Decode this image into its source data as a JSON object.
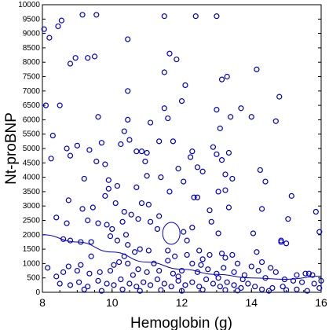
{
  "chart_data": {
    "type": "scatter",
    "title": "",
    "xlabel": "Hemoglobin (g)",
    "ylabel": "Nt-proBNP",
    "xlim": [
      8,
      16
    ],
    "ylim": [
      0,
      10000
    ],
    "xticks": [
      8,
      10,
      12,
      14,
      16
    ],
    "yticks": [
      0,
      500,
      1000,
      1500,
      2000,
      2500,
      3000,
      3500,
      4000,
      4500,
      5000,
      5500,
      6000,
      6500,
      7000,
      7500,
      8000,
      8500,
      9000,
      9500,
      10000
    ],
    "grid": false,
    "marker_color": "#0000cc",
    "fit_color": "#0000cc",
    "points": [
      [
        8.05,
        9150
      ],
      [
        8.2,
        8850
      ],
      [
        8.45,
        9250
      ],
      [
        8.55,
        9450
      ],
      [
        9.15,
        9650
      ],
      [
        9.55,
        9650
      ],
      [
        11.5,
        9600
      ],
      [
        12.4,
        9600
      ],
      [
        13.0,
        9600
      ],
      [
        8.8,
        7950
      ],
      [
        8.95,
        8150
      ],
      [
        9.3,
        8150
      ],
      [
        9.5,
        8200
      ],
      [
        10.45,
        8800
      ],
      [
        11.65,
        8300
      ],
      [
        11.85,
        8100
      ],
      [
        12.1,
        7200
      ],
      [
        13.15,
        7400
      ],
      [
        13.3,
        7500
      ],
      [
        14.15,
        7750
      ],
      [
        11.5,
        7650
      ],
      [
        8.1,
        6500
      ],
      [
        8.5,
        6500
      ],
      [
        8.3,
        5450
      ],
      [
        9.6,
        6100
      ],
      [
        10.45,
        7000
      ],
      [
        10.45,
        6000
      ],
      [
        10.35,
        5600
      ],
      [
        11.1,
        5900
      ],
      [
        11.5,
        6400
      ],
      [
        11.6,
        6050
      ],
      [
        12.0,
        6650
      ],
      [
        13.0,
        6350
      ],
      [
        13.1,
        5700
      ],
      [
        13.4,
        6100
      ],
      [
        13.7,
        6400
      ],
      [
        14.0,
        6100
      ],
      [
        14.8,
        6800
      ],
      [
        14.7,
        5950
      ],
      [
        11.75,
        5250
      ],
      [
        9.0,
        5100
      ],
      [
        8.7,
        5000
      ],
      [
        9.35,
        4950
      ],
      [
        9.7,
        5200
      ],
      [
        9.8,
        4450
      ],
      [
        10.25,
        5150
      ],
      [
        10.5,
        5300
      ],
      [
        10.7,
        4900
      ],
      [
        10.85,
        4900
      ],
      [
        11.0,
        4850
      ],
      [
        11.35,
        5250
      ],
      [
        12.3,
        4900
      ],
      [
        12.25,
        4700
      ],
      [
        12.9,
        5050
      ],
      [
        13.0,
        4800
      ],
      [
        13.15,
        4600
      ],
      [
        13.35,
        4850
      ],
      [
        14.25,
        4250
      ],
      [
        8.25,
        4650
      ],
      [
        8.8,
        4750
      ],
      [
        9.55,
        4550
      ],
      [
        10.95,
        4550
      ],
      [
        12.45,
        4350
      ],
      [
        13.25,
        4100
      ],
      [
        9.2,
        3950
      ],
      [
        9.9,
        3900
      ],
      [
        9.9,
        3600
      ],
      [
        10.15,
        3700
      ],
      [
        10.7,
        3650
      ],
      [
        11.0,
        4050
      ],
      [
        11.4,
        4000
      ],
      [
        11.65,
        3500
      ],
      [
        11.9,
        4300
      ],
      [
        12.05,
        3850
      ],
      [
        12.6,
        4200
      ],
      [
        13.05,
        3500
      ],
      [
        13.25,
        3550
      ],
      [
        13.45,
        3950
      ],
      [
        14.4,
        3850
      ],
      [
        14.3,
        2900
      ],
      [
        15.15,
        3350
      ],
      [
        8.75,
        3200
      ],
      [
        9.15,
        2900
      ],
      [
        9.45,
        2950
      ],
      [
        9.8,
        3350
      ],
      [
        10.1,
        3100
      ],
      [
        10.35,
        2800
      ],
      [
        10.85,
        3100
      ],
      [
        11.05,
        3050
      ],
      [
        11.35,
        2650
      ],
      [
        12.35,
        3300
      ],
      [
        12.45,
        3300
      ],
      [
        12.8,
        2850
      ],
      [
        12.85,
        2450
      ],
      [
        13.35,
        2950
      ],
      [
        15.05,
        2550
      ],
      [
        15.85,
        2800
      ],
      [
        8.4,
        2600
      ],
      [
        8.7,
        2400
      ],
      [
        9.6,
        2400
      ],
      [
        9.85,
        2350
      ],
      [
        10.3,
        2450
      ],
      [
        10.55,
        2700
      ],
      [
        10.75,
        2550
      ],
      [
        11.1,
        2450
      ],
      [
        11.3,
        2200
      ],
      [
        12.05,
        2100
      ],
      [
        12.3,
        2250
      ],
      [
        12.15,
        1800
      ],
      [
        13.05,
        2050
      ],
      [
        14.05,
        2050
      ],
      [
        14.85,
        1800
      ],
      [
        15.0,
        1700
      ],
      [
        15.95,
        2100
      ],
      [
        9.3,
        2500
      ],
      [
        10.0,
        2200
      ],
      [
        10.4,
        2000
      ],
      [
        8.6,
        1850
      ],
      [
        8.8,
        1800
      ],
      [
        9.1,
        1750
      ],
      [
        9.4,
        1750
      ],
      [
        9.95,
        1950
      ],
      [
        10.15,
        1800
      ],
      [
        10.45,
        1650
      ],
      [
        10.8,
        1500
      ],
      [
        11.05,
        1450
      ],
      [
        11.6,
        1450
      ],
      [
        12.5,
        1450
      ],
      [
        12.8,
        1300
      ],
      [
        13.15,
        1350
      ],
      [
        13.25,
        1200
      ],
      [
        13.45,
        1300
      ],
      [
        14.15,
        1400
      ],
      [
        14.85,
        1750
      ],
      [
        15.55,
        650
      ],
      [
        15.75,
        600
      ],
      [
        8.15,
        850
      ],
      [
        8.4,
        550
      ],
      [
        8.75,
        900
      ],
      [
        9.0,
        750
      ],
      [
        9.35,
        650
      ],
      [
        9.65,
        700
      ],
      [
        9.95,
        750
      ],
      [
        10.05,
        950
      ],
      [
        10.2,
        1050
      ],
      [
        10.45,
        1000
      ],
      [
        10.75,
        800
      ],
      [
        11.0,
        700
      ],
      [
        11.2,
        1000
      ],
      [
        11.35,
        750
      ],
      [
        11.6,
        1100
      ],
      [
        11.75,
        650
      ],
      [
        12.0,
        750
      ],
      [
        12.3,
        1000
      ],
      [
        12.55,
        950
      ],
      [
        12.75,
        800
      ],
      [
        13.0,
        650
      ],
      [
        13.2,
        850
      ],
      [
        13.5,
        700
      ],
      [
        13.8,
        600
      ],
      [
        14.0,
        900
      ],
      [
        14.2,
        750
      ],
      [
        14.4,
        500
      ],
      [
        14.7,
        700
      ],
      [
        15.2,
        400
      ],
      [
        15.45,
        350
      ],
      [
        8.5,
        300
      ],
      [
        8.8,
        250
      ],
      [
        9.05,
        350
      ],
      [
        9.3,
        200
      ],
      [
        9.6,
        400
      ],
      [
        9.85,
        300
      ],
      [
        10.05,
        250
      ],
      [
        10.25,
        450
      ],
      [
        10.5,
        300
      ],
      [
        10.7,
        200
      ],
      [
        10.9,
        350
      ],
      [
        11.1,
        250
      ],
      [
        11.3,
        450
      ],
      [
        11.5,
        300
      ],
      [
        11.7,
        200
      ],
      [
        11.9,
        400
      ],
      [
        12.1,
        250
      ],
      [
        12.3,
        350
      ],
      [
        12.5,
        200
      ],
      [
        12.7,
        450
      ],
      [
        12.9,
        300
      ],
      [
        13.1,
        200
      ],
      [
        13.3,
        350
      ],
      [
        13.5,
        250
      ],
      [
        13.7,
        150
      ],
      [
        13.9,
        300
      ],
      [
        14.1,
        200
      ],
      [
        14.3,
        100
      ],
      [
        14.6,
        150
      ],
      [
        14.9,
        200
      ],
      [
        15.3,
        100
      ],
      [
        15.6,
        50
      ],
      [
        15.95,
        150
      ],
      [
        9.2,
        100
      ],
      [
        9.7,
        50
      ],
      [
        10.3,
        100
      ],
      [
        10.8,
        50
      ],
      [
        11.4,
        80
      ],
      [
        12.0,
        50
      ],
      [
        12.6,
        90
      ],
      [
        13.25,
        80
      ],
      [
        13.6,
        60
      ],
      [
        14.5,
        50
      ],
      [
        15.0,
        80
      ],
      [
        15.8,
        300
      ],
      [
        10.35,
        1250
      ],
      [
        10.65,
        1400
      ],
      [
        11.8,
        1250
      ],
      [
        12.15,
        1300
      ],
      [
        12.6,
        1150
      ],
      [
        13.6,
        1000
      ],
      [
        14.3,
        1050
      ],
      [
        14.55,
        850
      ],
      [
        15.3,
        600
      ],
      [
        16.0,
        400
      ],
      [
        9.4,
        1250
      ],
      [
        9.1,
        950
      ],
      [
        8.6,
        700
      ],
      [
        10.6,
        600
      ],
      [
        11.9,
        550
      ],
      [
        12.45,
        700
      ],
      [
        13.05,
        500
      ],
      [
        13.75,
        450
      ],
      [
        14.95,
        450
      ],
      [
        15.65,
        650
      ]
    ],
    "fit_line": [
      [
        8.0,
        2000
      ],
      [
        9.0,
        1750
      ],
      [
        10.0,
        1400
      ],
      [
        11.0,
        1050
      ],
      [
        12.0,
        800
      ],
      [
        13.0,
        620
      ],
      [
        14.0,
        500
      ],
      [
        15.0,
        450
      ],
      [
        16.0,
        560
      ]
    ],
    "annotation_ellipse": {
      "x": 11.7,
      "y": 2050
    }
  }
}
